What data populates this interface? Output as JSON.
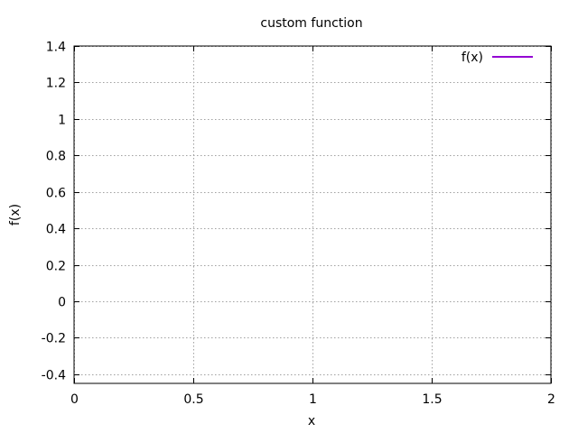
{
  "chart_data": {
    "type": "line",
    "title": "custom function",
    "xlabel": "x",
    "ylabel": "f(x)",
    "xlim": [
      0,
      2
    ],
    "ylim": [
      -0.45,
      1.4
    ],
    "x_ticks": [
      0,
      0.5,
      1,
      1.5,
      2
    ],
    "x_tick_labels": [
      "0",
      "0.5",
      "1",
      "1.5",
      "2"
    ],
    "y_ticks": [
      -0.4,
      -0.2,
      0,
      0.2,
      0.4,
      0.6,
      0.8,
      1,
      1.2,
      1.4
    ],
    "y_tick_labels": [
      "-0.4",
      "-0.2",
      "0",
      "0.2",
      "0.4",
      "0.6",
      "0.8",
      "1",
      "1.2",
      "1.4"
    ],
    "grid": true,
    "legend_position": "top-right",
    "series": [
      {
        "name": "f(x)",
        "color": "#9400d3",
        "x": [],
        "y": []
      }
    ]
  }
}
